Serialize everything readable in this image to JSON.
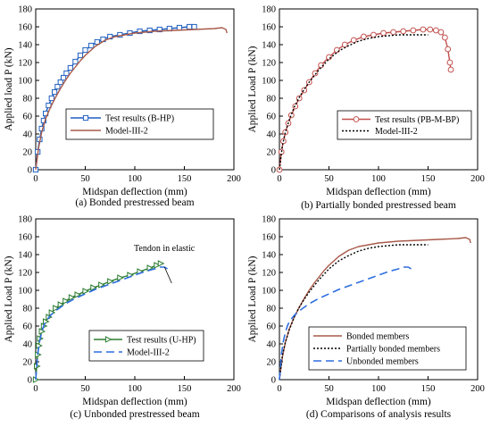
{
  "chart_data": [
    {
      "type": "line",
      "xlabel": "Midspan deflection (mm)",
      "ylabel": "Applied load P (kN)",
      "xlim": [
        0,
        200
      ],
      "ylim": [
        0,
        180
      ],
      "xticks": [
        0,
        50,
        100,
        150,
        200
      ],
      "yticks": [
        0,
        20,
        40,
        60,
        80,
        100,
        120,
        140,
        160,
        180
      ],
      "caption": "(a) Bonded prestressed beam",
      "legend_position": "center-left",
      "series": [
        {
          "name": "Test results (B-HP)",
          "style": "line-square",
          "color": "#1f5fbf",
          "x": [
            0,
            2,
            4,
            6,
            8,
            10,
            13,
            16,
            19,
            22,
            25,
            28,
            31,
            35,
            40,
            45,
            50,
            56,
            62,
            68,
            75,
            85,
            95,
            105,
            115,
            125,
            135,
            145,
            155,
            160
          ],
          "y": [
            0,
            20,
            34,
            46,
            55,
            63,
            72,
            80,
            87,
            93,
            98,
            103,
            108,
            114,
            121,
            128,
            134,
            139,
            143,
            146,
            149,
            151,
            153,
            155,
            156,
            157,
            158,
            159,
            160,
            160
          ]
        },
        {
          "name": "Model-III-2",
          "style": "solid",
          "color": "#a85a4a",
          "x": [
            0,
            3,
            6,
            10,
            15,
            20,
            25,
            30,
            35,
            40,
            45,
            50,
            60,
            70,
            80,
            90,
            100,
            120,
            140,
            160,
            180,
            188,
            192,
            193
          ],
          "y": [
            0,
            25,
            42,
            57,
            70,
            81,
            91,
            100,
            108,
            115,
            122,
            128,
            138,
            145,
            149,
            151,
            153,
            155,
            156,
            157,
            158,
            159,
            157,
            153
          ]
        }
      ]
    },
    {
      "type": "line",
      "xlabel": "Midspan deflection (mm)",
      "ylabel": "Applied Load P (kN)",
      "xlim": [
        0,
        200
      ],
      "ylim": [
        0,
        180
      ],
      "xticks": [
        0,
        50,
        100,
        150,
        200
      ],
      "yticks": [
        0,
        20,
        40,
        60,
        80,
        100,
        120,
        140,
        160,
        180
      ],
      "caption": "(b) Partially bonded prestressed beam",
      "legend_position": "bottom-right",
      "series": [
        {
          "name": "Test results (PB-M-BP)",
          "style": "line-circle",
          "color": "#c0504d",
          "x": [
            0,
            2,
            4,
            6,
            9,
            12,
            16,
            20,
            25,
            30,
            36,
            42,
            50,
            58,
            66,
            75,
            85,
            95,
            105,
            115,
            125,
            135,
            145,
            152,
            158,
            163,
            167,
            170,
            172,
            173
          ],
          "y": [
            0,
            20,
            32,
            42,
            52,
            61,
            71,
            80,
            89,
            98,
            108,
            117,
            126,
            134,
            140,
            145,
            149,
            151,
            153,
            154,
            155,
            156,
            157,
            157,
            156,
            154,
            148,
            135,
            120,
            112
          ]
        },
        {
          "name": "Model-III-2",
          "style": "dotted",
          "color": "#000000",
          "x": [
            0,
            3,
            6,
            10,
            15,
            20,
            25,
            30,
            40,
            50,
            60,
            70,
            80,
            90,
            100,
            110,
            120,
            130,
            140,
            150
          ],
          "y": [
            0,
            27,
            42,
            56,
            70,
            81,
            90,
            98,
            112,
            124,
            133,
            139,
            144,
            147,
            149,
            150,
            151,
            151,
            151,
            151
          ]
        }
      ]
    },
    {
      "type": "line",
      "xlabel": "Midspan deflection (mm)",
      "ylabel": "Applied Load P (kN)",
      "xlim": [
        0,
        200
      ],
      "ylim": [
        0,
        180
      ],
      "xticks": [
        0,
        50,
        100,
        150,
        200
      ],
      "yticks": [
        0,
        20,
        40,
        60,
        80,
        100,
        120,
        140,
        160,
        180
      ],
      "caption": "(c) Unbonded prestressed beam",
      "legend_position": "bottom-right",
      "annotation": "Tendon in elastic",
      "series": [
        {
          "name": "Test results (U-HP)",
          "style": "line-triangle",
          "color": "#2e7d32",
          "x": [
            0,
            1,
            2,
            3,
            4,
            6,
            8,
            10,
            13,
            16,
            20,
            25,
            30,
            36,
            42,
            50,
            58,
            66,
            75,
            85,
            95,
            105,
            115,
            122,
            126
          ],
          "y": [
            0,
            15,
            28,
            38,
            46,
            54,
            60,
            65,
            70,
            75,
            80,
            84,
            88,
            92,
            95,
            99,
            103,
            106,
            110,
            114,
            117,
            121,
            125,
            128,
            130
          ]
        },
        {
          "name": "Model-III-2",
          "style": "dashed",
          "color": "#2f6fdf",
          "x": [
            0,
            2,
            4,
            6,
            8,
            10,
            15,
            20,
            30,
            40,
            50,
            60,
            70,
            80,
            90,
            100,
            110,
            120,
            126,
            130,
            133
          ],
          "y": [
            0,
            28,
            43,
            53,
            60,
            65,
            72,
            77,
            85,
            91,
            96,
            101,
            105,
            109,
            113,
            117,
            121,
            124,
            126,
            126,
            124
          ]
        }
      ]
    },
    {
      "type": "line",
      "xlabel": "Midspan deflection (mm)",
      "ylabel": "Applied Load P (kN)",
      "xlim": [
        0,
        200
      ],
      "ylim": [
        0,
        180
      ],
      "xticks": [
        0,
        50,
        100,
        150,
        200
      ],
      "yticks": [
        0,
        20,
        40,
        60,
        80,
        100,
        120,
        140,
        160,
        180
      ],
      "caption": "(d) Comparisons of analysis results",
      "legend_position": "bottom-right",
      "series": [
        {
          "name": "Bonded members",
          "style": "solid",
          "color": "#a85a4a",
          "x": [
            0,
            3,
            6,
            10,
            15,
            20,
            25,
            30,
            35,
            40,
            45,
            50,
            60,
            70,
            80,
            90,
            100,
            120,
            140,
            160,
            180,
            188,
            192,
            193
          ],
          "y": [
            0,
            25,
            42,
            57,
            70,
            81,
            91,
            100,
            108,
            115,
            122,
            128,
            138,
            145,
            149,
            151,
            153,
            155,
            156,
            157,
            158,
            159,
            157,
            153
          ]
        },
        {
          "name": "Partially bonded members",
          "style": "dotted",
          "color": "#000000",
          "x": [
            0,
            3,
            6,
            10,
            15,
            20,
            25,
            30,
            40,
            50,
            60,
            70,
            80,
            90,
            100,
            110,
            120,
            130,
            140,
            150
          ],
          "y": [
            0,
            27,
            42,
            56,
            70,
            81,
            90,
            98,
            112,
            124,
            133,
            139,
            144,
            147,
            149,
            150,
            151,
            151,
            151,
            151
          ]
        },
        {
          "name": "Unbonded members",
          "style": "dashed",
          "color": "#2f6fdf",
          "x": [
            0,
            2,
            4,
            6,
            8,
            10,
            15,
            20,
            30,
            40,
            50,
            60,
            70,
            80,
            90,
            100,
            110,
            120,
            126,
            130,
            133
          ],
          "y": [
            0,
            28,
            43,
            53,
            60,
            65,
            72,
            77,
            85,
            91,
            96,
            101,
            105,
            109,
            113,
            117,
            121,
            124,
            126,
            126,
            124
          ]
        }
      ]
    }
  ]
}
